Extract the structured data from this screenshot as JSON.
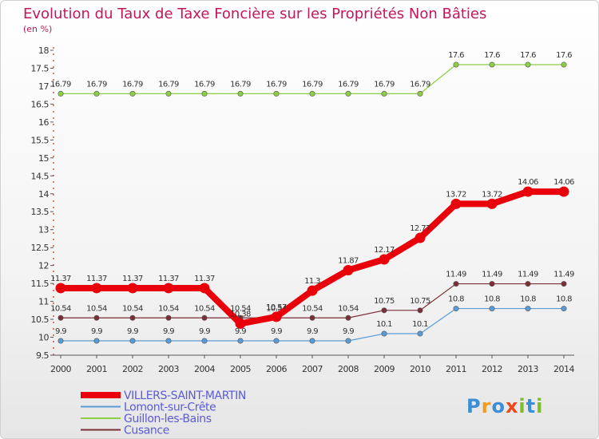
{
  "chart_data": {
    "type": "line",
    "title": "Evolution du Taux de Taxe Foncière sur les Propriétés Non Bâties",
    "subtitle": "(en %)",
    "x": [
      "2000",
      "2001",
      "2002",
      "2003",
      "2004",
      "2005",
      "2006",
      "2007",
      "2008",
      "2009",
      "2010",
      "2011",
      "2012",
      "2013",
      "2014"
    ],
    "y_ticks": [
      "9.5",
      "10",
      "10.5",
      "11",
      "11.5",
      "12",
      "12.5",
      "13",
      "13.5",
      "14",
      "14.5",
      "15",
      "15.5",
      "16",
      "16.5",
      "17",
      "17.5",
      "18"
    ],
    "ylim": [
      9.5,
      18
    ],
    "series": [
      {
        "name": "Guillon-les-Bains",
        "color": "#8ccf45",
        "values": [
          16.79,
          16.79,
          16.79,
          16.79,
          16.79,
          16.79,
          16.79,
          16.79,
          16.79,
          16.79,
          16.79,
          17.6,
          17.6,
          17.6,
          17.6
        ],
        "labels": [
          "16.79",
          "16.79",
          "16.79",
          "16.79",
          "16.79",
          "16.79",
          "16.79",
          "16.79",
          "16.79",
          "16.79",
          "16.79",
          "17.6",
          "17.6",
          "17.6",
          "17.6"
        ]
      },
      {
        "name": "Cusance",
        "color": "#7a2e35",
        "values": [
          10.54,
          10.54,
          10.54,
          10.54,
          10.54,
          10.54,
          10.54,
          10.54,
          10.54,
          10.75,
          10.75,
          11.49,
          11.49,
          11.49,
          11.49
        ],
        "labels": [
          "10.54",
          "10.54",
          "10.54",
          "10.54",
          "10.54",
          "10.54",
          "10.54",
          "10.54",
          "10.54",
          "10.75",
          "10.75",
          "11.49",
          "11.49",
          "11.49",
          "11.49"
        ]
      },
      {
        "name": "Lomont-sur-Crête",
        "color": "#5b9bd5",
        "values": [
          9.9,
          9.9,
          9.9,
          9.9,
          9.9,
          9.9,
          9.9,
          9.9,
          9.9,
          10.1,
          10.1,
          10.8,
          10.8,
          10.8,
          10.8
        ],
        "labels": [
          "9.9",
          "9.9",
          "9.9",
          "9.9",
          "9.9",
          "9.9",
          "9.9",
          "9.9",
          "9.9",
          "10.1",
          "10.1",
          "10.8",
          "10.8",
          "10.8",
          "10.8"
        ]
      },
      {
        "name": "VILLERS-SAINT-MARTIN",
        "color": "#e8000b",
        "values": [
          11.37,
          11.37,
          11.37,
          11.37,
          11.37,
          10.38,
          10.57,
          11.3,
          11.87,
          12.17,
          12.77,
          13.72,
          13.72,
          14.06,
          14.06
        ],
        "labels": [
          "11.37",
          "11.37",
          "11.37",
          "11.37",
          "11.37",
          "10.38",
          "10.57",
          "11.3",
          "11.87",
          "12.17",
          "12.77",
          "13.72",
          "13.72",
          "14.06",
          "14.06"
        ]
      }
    ],
    "legend": [
      "VILLERS-SAINT-MARTIN",
      "Lomont-sur-Crête",
      "Guillon-les-Bains",
      "Cusance"
    ],
    "legend_position": "bottom-left",
    "grid": false
  },
  "logo": {
    "text": "Proxiti"
  }
}
